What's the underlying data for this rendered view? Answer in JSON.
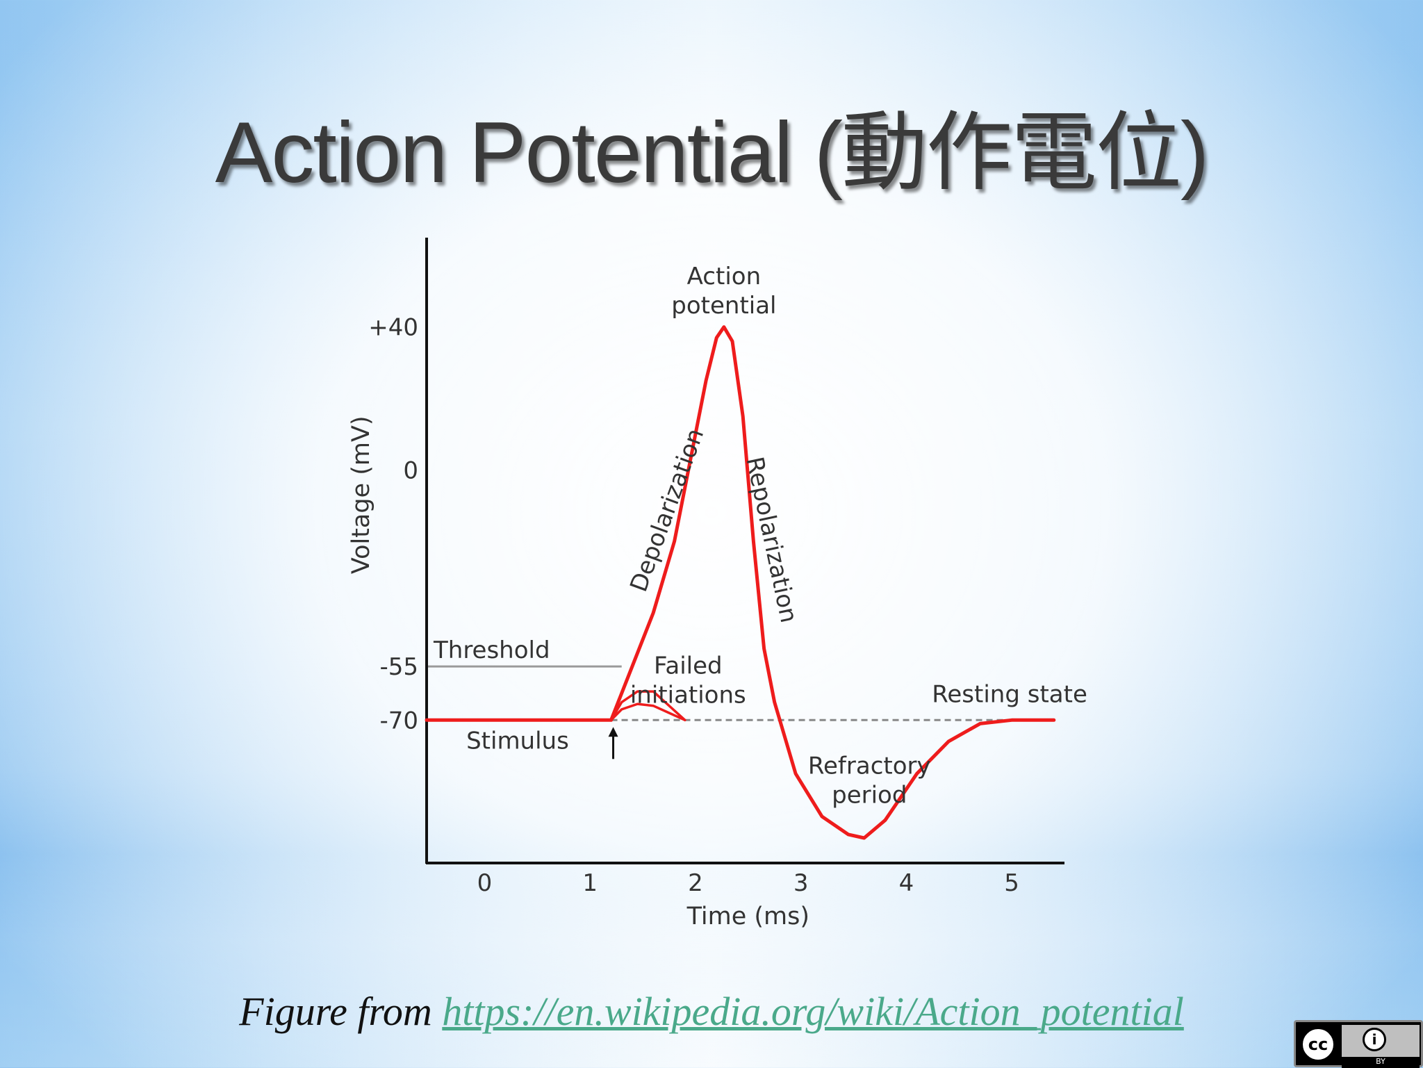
{
  "slide": {
    "title": "Action Potential (動作電位)",
    "caption_prefix": "Figure from ",
    "caption_link": "https://en.wikipedia.org/wiki/Action_potential"
  },
  "license_badge": {
    "cc_text": "cc",
    "by_text": "BY",
    "by_icon": "person-icon"
  },
  "colors": {
    "trace": "#ee1c1c",
    "axis": "#111111",
    "threshold": "#9a9a9a",
    "text": "#333333"
  },
  "chart_data": {
    "type": "line",
    "xlabel": "Time (ms)",
    "ylabel": "Voltage (mV)",
    "xlim": [
      -0.55,
      5.5
    ],
    "ylim": [
      -110,
      65
    ],
    "x_ticks": [
      0,
      1,
      2,
      3,
      4,
      5
    ],
    "y_ticks": [
      {
        "value": 40,
        "label": "+40"
      },
      {
        "value": 0,
        "label": "0"
      },
      {
        "value": -55,
        "label": "-55"
      },
      {
        "value": -70,
        "label": "-70"
      }
    ],
    "threshold": {
      "value": -55,
      "label": "Threshold",
      "x_end": 1.3
    },
    "resting_level": -70,
    "grid": false,
    "series": [
      {
        "name": "",
        "points": [
          [
            -0.55,
            -70
          ],
          [
            1.2,
            -70
          ],
          [
            1.4,
            -55
          ],
          [
            1.6,
            -40
          ],
          [
            1.8,
            -20
          ],
          [
            2.0,
            10
          ],
          [
            2.1,
            25
          ],
          [
            2.2,
            37
          ],
          [
            2.27,
            40
          ],
          [
            2.35,
            36
          ],
          [
            2.45,
            15
          ],
          [
            2.55,
            -20
          ],
          [
            2.65,
            -50
          ],
          [
            2.75,
            -65
          ],
          [
            2.8,
            -70
          ],
          [
            2.95,
            -85
          ],
          [
            3.2,
            -97
          ],
          [
            3.45,
            -102
          ],
          [
            3.6,
            -103
          ],
          [
            3.8,
            -98
          ],
          [
            4.1,
            -85
          ],
          [
            4.4,
            -76
          ],
          [
            4.7,
            -71
          ],
          [
            5.0,
            -70
          ],
          [
            5.4,
            -70
          ]
        ]
      },
      {
        "name": "",
        "points": [
          [
            1.2,
            -70
          ],
          [
            1.3,
            -65
          ],
          [
            1.45,
            -62
          ],
          [
            1.6,
            -62
          ],
          [
            1.75,
            -66
          ],
          [
            1.9,
            -70
          ]
        ]
      },
      {
        "name": "",
        "points": [
          [
            1.2,
            -70
          ],
          [
            1.3,
            -67
          ],
          [
            1.45,
            -65.5
          ],
          [
            1.6,
            -66
          ],
          [
            1.75,
            -68
          ],
          [
            1.9,
            -70
          ]
        ]
      }
    ],
    "annotations": [
      {
        "text_lines": [
          "Action",
          "potential"
        ],
        "x": 2.27,
        "y": 52
      },
      {
        "text_lines": [
          "Depolarization"
        ],
        "x": 1.8,
        "y": -12
      },
      {
        "text_lines": [
          "Repolarization"
        ],
        "x": 2.65,
        "y": -20
      },
      {
        "text_lines": [
          "Failed",
          "initiations"
        ],
        "x": 1.93,
        "y": -57
      },
      {
        "text_lines": [
          "Resting state"
        ],
        "x": 4.98,
        "y": -65
      },
      {
        "text_lines": [
          "Stimulus"
        ],
        "x": 0.8,
        "y": -78
      },
      {
        "text_lines": [
          "Refractory",
          "period"
        ],
        "x": 3.65,
        "y": -85
      }
    ]
  }
}
